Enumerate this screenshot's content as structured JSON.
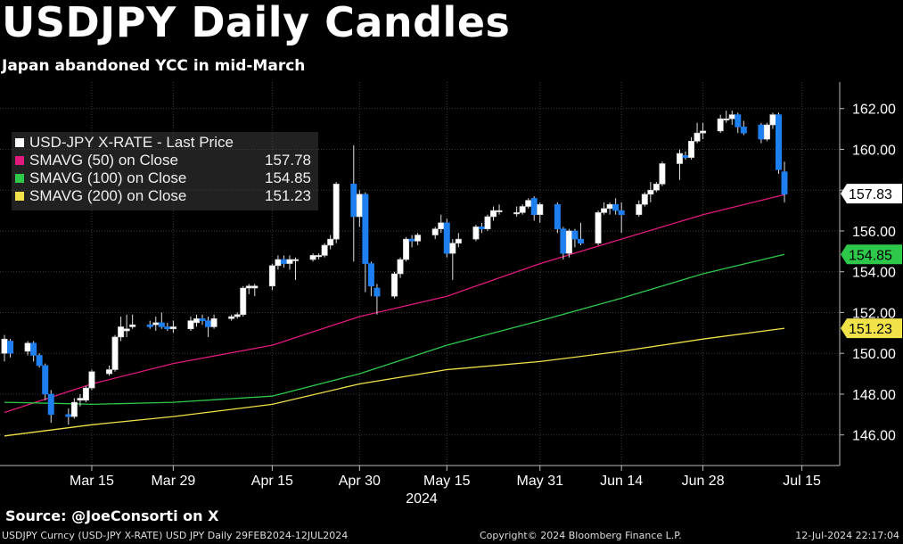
{
  "header": {
    "title": "USDJPY Daily Candles",
    "subtitle": "Japan abandoned YCC in mid-March"
  },
  "footer": {
    "source": "Source: @JoeConsorti on X",
    "left": "USDJPY Curncy (USD-JPY X-RATE) USD JPY  Daily 29FEB2024-12JUL2024",
    "center": "Copyright© 2024 Bloomberg Finance L.P.",
    "right": "12-Jul-2024 22:17:04"
  },
  "legend": {
    "title": "USD-JPY X-RATE - Last Price",
    "items": [
      {
        "name": "SMAVG (50)  on Close",
        "value": "157.78",
        "color": "#e0197d"
      },
      {
        "name": "SMAVG (100)  on Close",
        "value": "154.85",
        "color": "#2ec84a"
      },
      {
        "name": "SMAVG (200)  on Close",
        "value": "151.23",
        "color": "#f2e24a"
      }
    ]
  },
  "colors": {
    "up": "#ffffff",
    "down": "#1e7ff0",
    "sma50": "#e0197d",
    "sma100": "#2ec84a",
    "sma200": "#f2e24a",
    "last_price_tag": "#ffffff",
    "sma100_tag": "#2ec84a",
    "sma200_tag": "#f2e24a"
  },
  "chart_data": {
    "type": "candlestick",
    "ylim": [
      144.5,
      163.3
    ],
    "y_ticks": [
      146,
      148,
      150,
      152,
      154,
      156,
      158,
      160,
      162
    ],
    "y_tick_labels": [
      "146.00",
      "148.00",
      "150.00",
      "152.00",
      "154.00",
      "156.00",
      "158.00",
      "160.00",
      "162.00"
    ],
    "x_tick_labels": [
      "Mar 15",
      "Mar 29",
      "Apr 15",
      "Apr 30",
      "May 15",
      "May 31",
      "Jun 14",
      "Jun 28",
      "Jul 15"
    ],
    "x_tick_dates": [
      "2024-03-15",
      "2024-03-29",
      "2024-04-15",
      "2024-04-30",
      "2024-05-15",
      "2024-05-31",
      "2024-06-14",
      "2024-06-28",
      "2024-07-15"
    ],
    "x_year_label": "2024",
    "grid": true,
    "value_tags": [
      {
        "label": "157.83",
        "value": 157.83,
        "series": "last_price"
      },
      {
        "label": "154.85",
        "value": 154.85,
        "series": "sma100"
      },
      {
        "label": "151.23",
        "value": 151.23,
        "series": "sma200"
      }
    ],
    "candles": [
      {
        "date": "2024-02-29",
        "o": 150.0,
        "h": 150.9,
        "l": 149.6,
        "c": 150.7
      },
      {
        "date": "2024-03-01",
        "o": 150.6,
        "h": 150.7,
        "l": 149.8,
        "c": 150.0
      },
      {
        "date": "2024-03-04",
        "o": 150.1,
        "h": 150.6,
        "l": 149.9,
        "c": 150.5
      },
      {
        "date": "2024-03-05",
        "o": 150.5,
        "h": 150.6,
        "l": 149.6,
        "c": 149.9
      },
      {
        "date": "2024-03-06",
        "o": 149.9,
        "h": 150.0,
        "l": 149.3,
        "c": 149.4
      },
      {
        "date": "2024-03-07",
        "o": 149.4,
        "h": 149.5,
        "l": 147.7,
        "c": 148.0
      },
      {
        "date": "2024-03-08",
        "o": 148.0,
        "h": 148.2,
        "l": 146.6,
        "c": 147.0
      },
      {
        "date": "2024-03-11",
        "o": 147.0,
        "h": 147.3,
        "l": 146.5,
        "c": 146.9
      },
      {
        "date": "2024-03-12",
        "o": 146.9,
        "h": 147.8,
        "l": 146.8,
        "c": 147.6
      },
      {
        "date": "2024-03-13",
        "o": 147.7,
        "h": 148.0,
        "l": 147.4,
        "c": 147.8
      },
      {
        "date": "2024-03-14",
        "o": 147.7,
        "h": 148.4,
        "l": 147.6,
        "c": 148.3
      },
      {
        "date": "2024-03-15",
        "o": 148.3,
        "h": 149.2,
        "l": 148.2,
        "c": 149.1
      },
      {
        "date": "2024-03-18",
        "o": 149.0,
        "h": 149.4,
        "l": 148.9,
        "c": 149.2
      },
      {
        "date": "2024-03-19",
        "o": 149.2,
        "h": 150.9,
        "l": 149.1,
        "c": 150.8
      },
      {
        "date": "2024-03-20",
        "o": 150.8,
        "h": 151.8,
        "l": 150.6,
        "c": 151.3
      },
      {
        "date": "2024-03-21",
        "o": 151.1,
        "h": 151.9,
        "l": 150.8,
        "c": 151.2
      },
      {
        "date": "2024-03-22",
        "o": 151.3,
        "h": 151.9,
        "l": 151.2,
        "c": 151.4
      },
      {
        "date": "2024-03-25",
        "o": 151.4,
        "h": 151.6,
        "l": 151.2,
        "c": 151.3
      },
      {
        "date": "2024-03-26",
        "o": 151.4,
        "h": 151.8,
        "l": 151.1,
        "c": 151.5
      },
      {
        "date": "2024-03-27",
        "o": 151.5,
        "h": 152.0,
        "l": 151.2,
        "c": 151.3
      },
      {
        "date": "2024-03-28",
        "o": 151.3,
        "h": 151.5,
        "l": 151.1,
        "c": 151.2
      },
      {
        "date": "2024-03-29",
        "o": 151.2,
        "h": 151.6,
        "l": 151.0,
        "c": 151.3
      },
      {
        "date": "2024-04-01",
        "o": 151.2,
        "h": 151.8,
        "l": 151.1,
        "c": 151.6
      },
      {
        "date": "2024-04-02",
        "o": 151.5,
        "h": 151.9,
        "l": 151.3,
        "c": 151.7
      },
      {
        "date": "2024-04-03",
        "o": 151.7,
        "h": 151.9,
        "l": 151.4,
        "c": 151.6
      },
      {
        "date": "2024-04-04",
        "o": 151.6,
        "h": 151.8,
        "l": 150.8,
        "c": 151.3
      },
      {
        "date": "2024-04-05",
        "o": 151.3,
        "h": 151.9,
        "l": 151.2,
        "c": 151.7
      },
      {
        "date": "2024-04-08",
        "o": 151.7,
        "h": 151.9,
        "l": 151.6,
        "c": 151.8
      },
      {
        "date": "2024-04-09",
        "o": 151.8,
        "h": 152.0,
        "l": 151.7,
        "c": 151.9
      },
      {
        "date": "2024-04-10",
        "o": 151.9,
        "h": 153.3,
        "l": 151.8,
        "c": 153.2
      },
      {
        "date": "2024-04-11",
        "o": 153.2,
        "h": 153.4,
        "l": 152.9,
        "c": 153.3
      },
      {
        "date": "2024-04-12",
        "o": 153.2,
        "h": 153.4,
        "l": 152.8,
        "c": 153.3
      },
      {
        "date": "2024-04-15",
        "o": 153.3,
        "h": 154.4,
        "l": 153.1,
        "c": 154.3
      },
      {
        "date": "2024-04-16",
        "o": 154.3,
        "h": 154.8,
        "l": 154.1,
        "c": 154.6
      },
      {
        "date": "2024-04-17",
        "o": 154.6,
        "h": 154.8,
        "l": 154.2,
        "c": 154.4
      },
      {
        "date": "2024-04-18",
        "o": 154.4,
        "h": 154.8,
        "l": 154.1,
        "c": 154.6
      },
      {
        "date": "2024-04-19",
        "o": 154.6,
        "h": 154.7,
        "l": 153.6,
        "c": 154.6
      },
      {
        "date": "2024-04-22",
        "o": 154.6,
        "h": 154.9,
        "l": 154.5,
        "c": 154.8
      },
      {
        "date": "2024-04-23",
        "o": 154.8,
        "h": 154.9,
        "l": 154.6,
        "c": 154.8
      },
      {
        "date": "2024-04-24",
        "o": 154.8,
        "h": 155.4,
        "l": 154.7,
        "c": 155.3
      },
      {
        "date": "2024-04-25",
        "o": 155.3,
        "h": 155.8,
        "l": 155.1,
        "c": 155.6
      },
      {
        "date": "2024-04-26",
        "o": 155.6,
        "h": 158.4,
        "l": 155.4,
        "c": 158.3
      },
      {
        "date": "2024-04-29",
        "o": 158.3,
        "h": 160.2,
        "l": 154.5,
        "c": 156.7
      },
      {
        "date": "2024-04-30",
        "o": 156.7,
        "h": 158.0,
        "l": 156.2,
        "c": 157.8
      },
      {
        "date": "2024-05-01",
        "o": 157.8,
        "h": 157.9,
        "l": 153.0,
        "c": 154.4
      },
      {
        "date": "2024-05-02",
        "o": 154.4,
        "h": 154.5,
        "l": 152.8,
        "c": 153.3
      },
      {
        "date": "2024-05-03",
        "o": 153.2,
        "h": 153.4,
        "l": 151.9,
        "c": 152.8
      },
      {
        "date": "2024-05-06",
        "o": 152.8,
        "h": 154.0,
        "l": 152.7,
        "c": 153.9
      },
      {
        "date": "2024-05-07",
        "o": 153.9,
        "h": 154.7,
        "l": 153.7,
        "c": 154.6
      },
      {
        "date": "2024-05-08",
        "o": 154.6,
        "h": 155.7,
        "l": 154.5,
        "c": 155.6
      },
      {
        "date": "2024-05-09",
        "o": 155.6,
        "h": 155.8,
        "l": 155.2,
        "c": 155.5
      },
      {
        "date": "2024-05-10",
        "o": 155.5,
        "h": 155.9,
        "l": 155.3,
        "c": 155.8
      },
      {
        "date": "2024-05-13",
        "o": 155.8,
        "h": 156.2,
        "l": 155.6,
        "c": 156.1
      },
      {
        "date": "2024-05-14",
        "o": 156.1,
        "h": 156.8,
        "l": 155.9,
        "c": 156.4
      },
      {
        "date": "2024-05-15",
        "o": 156.4,
        "h": 156.6,
        "l": 154.7,
        "c": 154.9
      },
      {
        "date": "2024-05-16",
        "o": 154.9,
        "h": 155.6,
        "l": 153.6,
        "c": 155.4
      },
      {
        "date": "2024-05-17",
        "o": 155.4,
        "h": 155.9,
        "l": 155.2,
        "c": 155.6
      },
      {
        "date": "2024-05-20",
        "o": 155.6,
        "h": 156.3,
        "l": 155.5,
        "c": 156.2
      },
      {
        "date": "2024-05-21",
        "o": 156.2,
        "h": 156.4,
        "l": 155.9,
        "c": 156.1
      },
      {
        "date": "2024-05-22",
        "o": 156.1,
        "h": 156.8,
        "l": 156.0,
        "c": 156.7
      },
      {
        "date": "2024-05-23",
        "o": 156.7,
        "h": 157.2,
        "l": 156.5,
        "c": 157.0
      },
      {
        "date": "2024-05-24",
        "o": 157.0,
        "h": 157.3,
        "l": 156.8,
        "c": 157.0
      },
      {
        "date": "2024-05-27",
        "o": 156.9,
        "h": 157.2,
        "l": 156.7,
        "c": 156.9
      },
      {
        "date": "2024-05-28",
        "o": 156.9,
        "h": 157.3,
        "l": 156.8,
        "c": 157.2
      },
      {
        "date": "2024-05-29",
        "o": 157.2,
        "h": 157.6,
        "l": 157.1,
        "c": 157.5
      },
      {
        "date": "2024-05-30",
        "o": 157.6,
        "h": 157.7,
        "l": 156.5,
        "c": 156.8
      },
      {
        "date": "2024-05-31",
        "o": 156.8,
        "h": 157.4,
        "l": 156.4,
        "c": 157.3
      },
      {
        "date": "2024-06-03",
        "o": 157.3,
        "h": 157.4,
        "l": 155.9,
        "c": 156.1
      },
      {
        "date": "2024-06-04",
        "o": 156.1,
        "h": 156.2,
        "l": 154.6,
        "c": 154.9
      },
      {
        "date": "2024-06-05",
        "o": 154.9,
        "h": 156.1,
        "l": 154.7,
        "c": 156.0
      },
      {
        "date": "2024-06-06",
        "o": 156.0,
        "h": 156.1,
        "l": 155.2,
        "c": 155.6
      },
      {
        "date": "2024-06-07",
        "o": 155.6,
        "h": 156.4,
        "l": 155.3,
        "c": 155.4
      },
      {
        "date": "2024-06-10",
        "o": 155.4,
        "h": 157.0,
        "l": 155.3,
        "c": 156.9
      },
      {
        "date": "2024-06-11",
        "o": 156.9,
        "h": 157.4,
        "l": 156.8,
        "c": 157.1
      },
      {
        "date": "2024-06-12",
        "o": 157.1,
        "h": 157.4,
        "l": 156.8,
        "c": 157.3
      },
      {
        "date": "2024-06-13",
        "o": 157.3,
        "h": 157.6,
        "l": 156.8,
        "c": 157.0
      },
      {
        "date": "2024-06-14",
        "o": 157.0,
        "h": 157.4,
        "l": 155.9,
        "c": 156.8
      },
      {
        "date": "2024-06-17",
        "o": 156.8,
        "h": 157.5,
        "l": 156.7,
        "c": 157.3
      },
      {
        "date": "2024-06-18",
        "o": 157.3,
        "h": 157.9,
        "l": 157.2,
        "c": 157.8
      },
      {
        "date": "2024-06-19",
        "o": 157.8,
        "h": 158.4,
        "l": 157.4,
        "c": 158.0
      },
      {
        "date": "2024-06-20",
        "o": 158.0,
        "h": 158.4,
        "l": 157.9,
        "c": 158.3
      },
      {
        "date": "2024-06-21",
        "o": 158.3,
        "h": 159.4,
        "l": 158.2,
        "c": 159.3
      },
      {
        "date": "2024-06-24",
        "o": 159.3,
        "h": 160.0,
        "l": 158.5,
        "c": 159.8
      },
      {
        "date": "2024-06-25",
        "o": 159.7,
        "h": 159.9,
        "l": 159.5,
        "c": 159.6
      },
      {
        "date": "2024-06-26",
        "o": 159.6,
        "h": 160.6,
        "l": 159.5,
        "c": 160.4
      },
      {
        "date": "2024-06-27",
        "o": 160.4,
        "h": 161.3,
        "l": 160.3,
        "c": 160.8
      },
      {
        "date": "2024-06-28",
        "o": 160.8,
        "h": 161.3,
        "l": 160.5,
        "c": 160.9
      },
      {
        "date": "2024-07-01",
        "o": 160.9,
        "h": 161.7,
        "l": 160.8,
        "c": 161.5
      },
      {
        "date": "2024-07-02",
        "o": 161.5,
        "h": 161.9,
        "l": 161.3,
        "c": 161.5
      },
      {
        "date": "2024-07-03",
        "o": 161.5,
        "h": 161.9,
        "l": 161.2,
        "c": 161.7
      },
      {
        "date": "2024-07-04",
        "o": 161.7,
        "h": 161.8,
        "l": 160.8,
        "c": 161.1
      },
      {
        "date": "2024-07-05",
        "o": 161.1,
        "h": 161.4,
        "l": 160.7,
        "c": 160.8
      },
      {
        "date": "2024-07-08",
        "o": 161.2,
        "h": 161.3,
        "l": 160.3,
        "c": 160.5
      },
      {
        "date": "2024-07-09",
        "o": 160.5,
        "h": 161.3,
        "l": 160.4,
        "c": 161.2
      },
      {
        "date": "2024-07-10",
        "o": 161.2,
        "h": 161.8,
        "l": 161.0,
        "c": 161.7
      },
      {
        "date": "2024-07-11",
        "o": 161.7,
        "h": 161.8,
        "l": 158.8,
        "c": 159.0
      },
      {
        "date": "2024-07-12",
        "o": 158.9,
        "h": 159.4,
        "l": 157.4,
        "c": 157.8
      }
    ],
    "series": [
      {
        "name": "SMAVG (50)  on Close",
        "key": "sma50",
        "points": [
          [
            "2024-02-29",
            147.1
          ],
          [
            "2024-03-15",
            148.5
          ],
          [
            "2024-03-29",
            149.5
          ],
          [
            "2024-04-15",
            150.4
          ],
          [
            "2024-04-30",
            151.8
          ],
          [
            "2024-05-15",
            152.8
          ],
          [
            "2024-05-31",
            154.4
          ],
          [
            "2024-06-14",
            155.6
          ],
          [
            "2024-06-28",
            156.8
          ],
          [
            "2024-07-12",
            157.78
          ]
        ]
      },
      {
        "name": "SMAVG (100)  on Close",
        "key": "sma100",
        "points": [
          [
            "2024-02-29",
            147.6
          ],
          [
            "2024-03-08",
            147.55
          ],
          [
            "2024-03-15",
            147.5
          ],
          [
            "2024-03-29",
            147.6
          ],
          [
            "2024-04-15",
            147.9
          ],
          [
            "2024-04-30",
            149.0
          ],
          [
            "2024-05-15",
            150.4
          ],
          [
            "2024-05-31",
            151.6
          ],
          [
            "2024-06-14",
            152.7
          ],
          [
            "2024-06-28",
            153.9
          ],
          [
            "2024-07-12",
            154.85
          ]
        ]
      },
      {
        "name": "SMAVG (200)  on Close",
        "key": "sma200",
        "points": [
          [
            "2024-02-29",
            145.95
          ],
          [
            "2024-03-15",
            146.5
          ],
          [
            "2024-03-29",
            146.9
          ],
          [
            "2024-04-15",
            147.5
          ],
          [
            "2024-04-30",
            148.5
          ],
          [
            "2024-05-15",
            149.2
          ],
          [
            "2024-05-31",
            149.6
          ],
          [
            "2024-06-14",
            150.1
          ],
          [
            "2024-06-28",
            150.7
          ],
          [
            "2024-07-12",
            151.23
          ]
        ]
      }
    ]
  }
}
